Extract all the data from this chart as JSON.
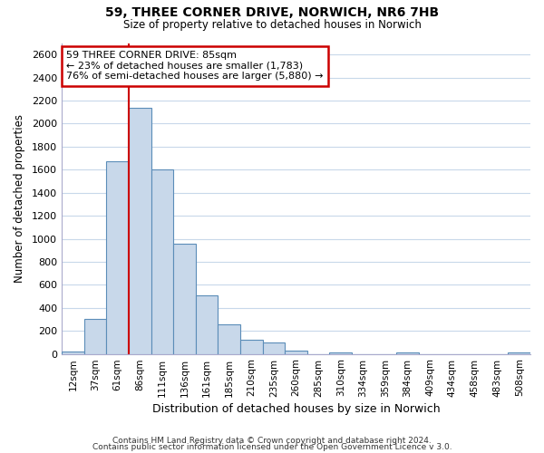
{
  "title1": "59, THREE CORNER DRIVE, NORWICH, NR6 7HB",
  "title2": "Size of property relative to detached houses in Norwich",
  "xlabel": "Distribution of detached houses by size in Norwich",
  "ylabel": "Number of detached properties",
  "bin_labels": [
    "12sqm",
    "37sqm",
    "61sqm",
    "86sqm",
    "111sqm",
    "136sqm",
    "161sqm",
    "185sqm",
    "210sqm",
    "235sqm",
    "260sqm",
    "285sqm",
    "310sqm",
    "334sqm",
    "359sqm",
    "384sqm",
    "409sqm",
    "434sqm",
    "458sqm",
    "483sqm",
    "508sqm"
  ],
  "bar_heights": [
    20,
    300,
    1670,
    2140,
    1600,
    960,
    505,
    255,
    120,
    95,
    30,
    0,
    15,
    0,
    0,
    10,
    0,
    0,
    0,
    0,
    15
  ],
  "bar_color": "#c8d8ea",
  "bar_edge_color": "#5b8db8",
  "property_line_color": "#cc0000",
  "ylim": [
    0,
    2700
  ],
  "yticks": [
    0,
    200,
    400,
    600,
    800,
    1000,
    1200,
    1400,
    1600,
    1800,
    2000,
    2200,
    2400,
    2600
  ],
  "annotation_title": "59 THREE CORNER DRIVE: 85sqm",
  "annotation_line1": "← 23% of detached houses are smaller (1,783)",
  "annotation_line2": "76% of semi-detached houses are larger (5,880) →",
  "annotation_box_color": "#cc0000",
  "footer1": "Contains HM Land Registry data © Crown copyright and database right 2024.",
  "footer2": "Contains public sector information licensed under the Open Government Licence v 3.0.",
  "background_color": "#ffffff",
  "grid_color": "#c8d8ea"
}
